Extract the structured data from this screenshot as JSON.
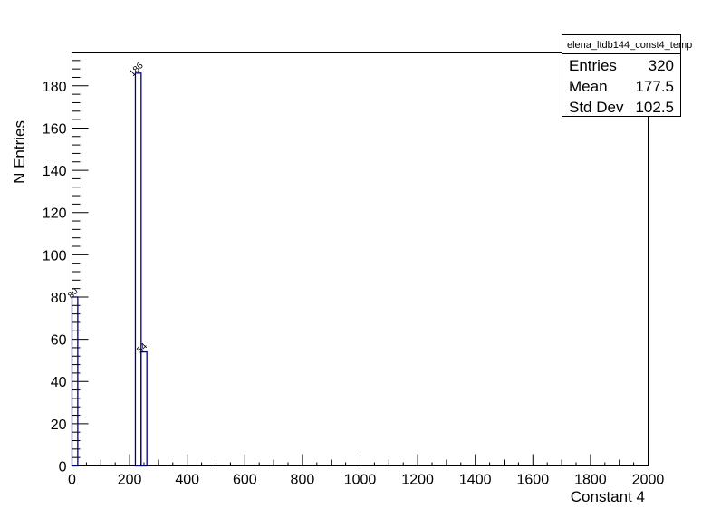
{
  "chart_data": {
    "type": "bar",
    "xlabel": "Constant 4",
    "ylabel": "N Entries",
    "xlim": [
      0,
      2000
    ],
    "ylim": [
      0,
      196
    ],
    "xticks": [
      0,
      200,
      400,
      600,
      800,
      1000,
      1200,
      1400,
      1600,
      1800,
      2000
    ],
    "yticks": [
      0,
      20,
      40,
      60,
      80,
      100,
      120,
      140,
      160,
      180
    ],
    "bins": [
      {
        "x0": 0,
        "x1": 20,
        "value": 80,
        "label": "80"
      },
      {
        "x0": 220,
        "x1": 240,
        "value": 186,
        "label": "186"
      },
      {
        "x0": 240,
        "x1": 260,
        "value": 54,
        "label": "54"
      }
    ],
    "grid": false,
    "legend": "none",
    "colors": {
      "line": "#000080",
      "axis": "#000000"
    }
  },
  "stats": {
    "title": "elena_ltdb144_const4_temp",
    "rows": [
      {
        "name": "Entries",
        "value": "320"
      },
      {
        "name": "Mean",
        "value": "177.5"
      },
      {
        "name": "Std Dev",
        "value": "102.5"
      }
    ]
  }
}
